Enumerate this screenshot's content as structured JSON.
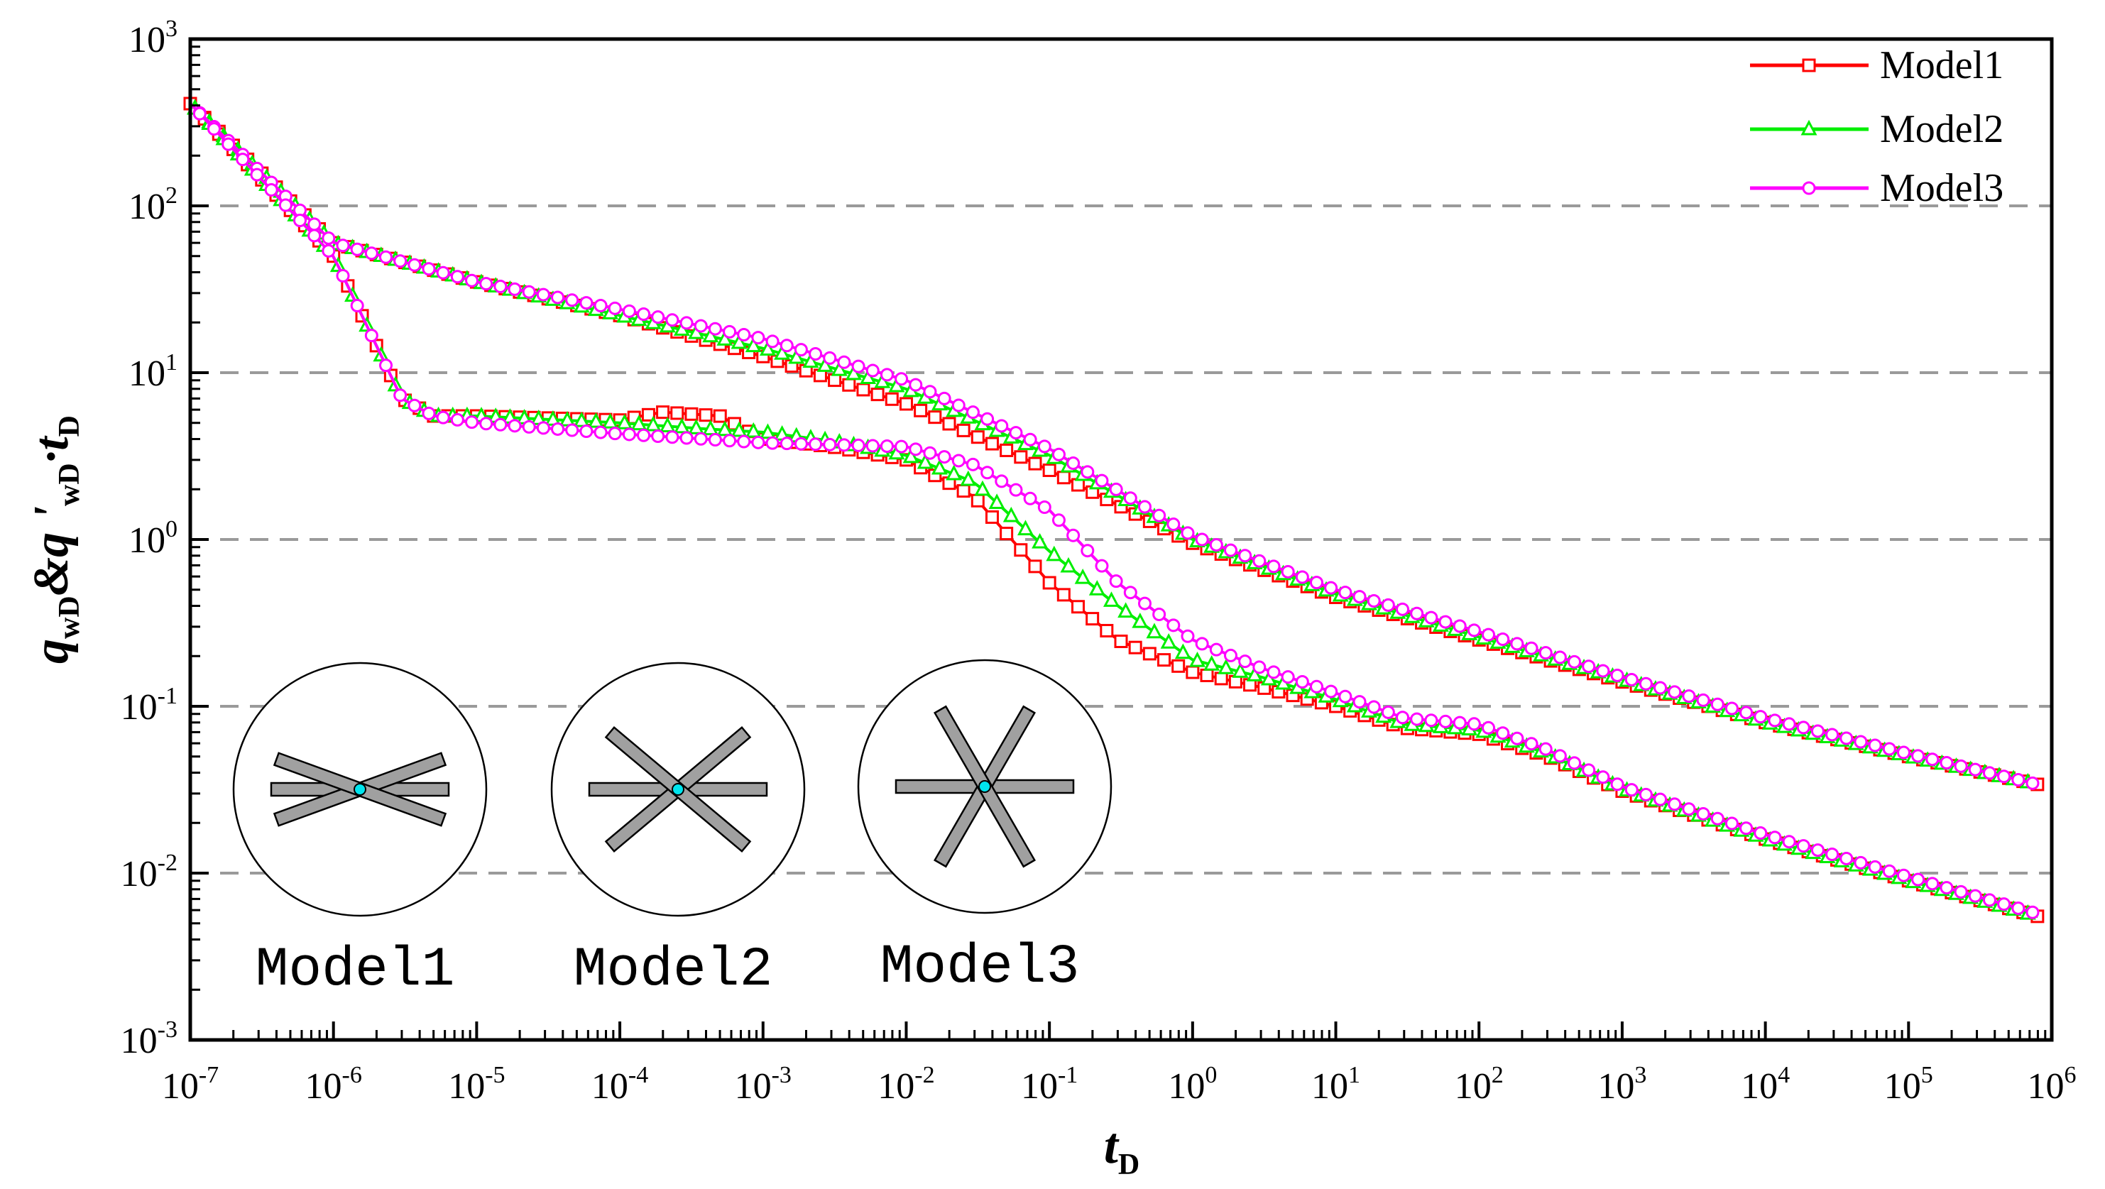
{
  "chart_data": {
    "type": "line",
    "title": "",
    "xscale": "log",
    "yscale": "log",
    "xlim": [
      1e-07,
      1000000.0
    ],
    "ylim": [
      0.001,
      1000.0
    ],
    "xlabel": {
      "main": "t",
      "sub": "D"
    },
    "ylabel": {
      "parts": [
        {
          "t": "q"
        },
        {
          "t": "wD",
          "sub": true
        },
        {
          "t": "&q"
        },
        {
          "t": " '",
          "sup": false
        },
        {
          "t": "wD",
          "sub": true
        },
        {
          "t": "·t"
        },
        {
          "t": "D",
          "sub": true
        }
      ]
    },
    "x_ticks": [
      {
        "base": "10",
        "exp": "-7"
      },
      {
        "base": "10",
        "exp": "-6"
      },
      {
        "base": "10",
        "exp": "-5"
      },
      {
        "base": "10",
        "exp": "-4"
      },
      {
        "base": "10",
        "exp": "-3"
      },
      {
        "base": "10",
        "exp": "-2"
      },
      {
        "base": "10",
        "exp": "-1"
      },
      {
        "base": "10",
        "exp": "0"
      },
      {
        "base": "10",
        "exp": "1"
      },
      {
        "base": "10",
        "exp": "2"
      },
      {
        "base": "10",
        "exp": "3"
      },
      {
        "base": "10",
        "exp": "4"
      },
      {
        "base": "10",
        "exp": "5"
      },
      {
        "base": "10",
        "exp": "6"
      }
    ],
    "y_ticks": [
      {
        "base": "10",
        "exp": "-3"
      },
      {
        "base": "10",
        "exp": "-2"
      },
      {
        "base": "10",
        "exp": "-1"
      },
      {
        "base": "10",
        "exp": "0"
      },
      {
        "base": "10",
        "exp": "1"
      },
      {
        "base": "10",
        "exp": "2"
      },
      {
        "base": "10",
        "exp": "3"
      }
    ],
    "horizontal_gridlines": [
      0.01,
      0.1,
      1,
      10,
      100
    ],
    "legend_position": "top-right",
    "series": [
      {
        "name": "Model1",
        "color": "#ff0000",
        "marker": "square",
        "curves": [
          {
            "label": "rate",
            "points": [
              [
                1e-07,
                410
              ],
              [
                1e-06,
                60
              ],
              [
                1e-05,
                35
              ],
              [
                0.0001,
                22
              ],
              [
                0.001,
                12.5
              ],
              [
                0.01,
                6.5
              ],
              [
                0.1,
                2.6
              ],
              [
                1,
                0.95
              ],
              [
                10,
                0.45
              ],
              [
                100,
                0.25
              ],
              [
                1000,
                0.14
              ],
              [
                10000,
                0.08
              ],
              [
                100000,
                0.05
              ],
              [
                800000,
                0.034
              ]
            ]
          },
          {
            "label": "derivative",
            "points": [
              [
                1e-07,
                410
              ],
              [
                1e-06,
                50
              ],
              [
                3e-06,
                7
              ],
              [
                5e-06,
                5.5
              ],
              [
                1e-05,
                5.5
              ],
              [
                0.0001,
                5.2
              ],
              [
                0.0002,
                5.8
              ],
              [
                0.0005,
                5.5
              ],
              [
                0.001,
                4
              ],
              [
                0.003,
                3.6
              ],
              [
                0.01,
                3
              ],
              [
                0.03,
                1.8
              ],
              [
                0.1,
                0.55
              ],
              [
                0.3,
                0.25
              ],
              [
                1,
                0.16
              ],
              [
                3,
                0.13
              ],
              [
                10,
                0.1
              ],
              [
                30,
                0.074
              ],
              [
                100,
                0.068
              ],
              [
                300,
                0.05
              ],
              [
                1000,
                0.031
              ],
              [
                10000,
                0.016
              ],
              [
                100000,
                0.009
              ],
              [
                800000,
                0.0055
              ]
            ]
          }
        ]
      },
      {
        "name": "Model2",
        "color": "#00ee00",
        "marker": "triangle",
        "curves": [
          {
            "label": "rate",
            "points": [
              [
                1e-07,
                410
              ],
              [
                1e-06,
                60
              ],
              [
                1e-05,
                35
              ],
              [
                0.0001,
                22
              ],
              [
                0.001,
                14
              ],
              [
                0.01,
                8
              ],
              [
                0.1,
                3.2
              ],
              [
                1,
                1.0
              ],
              [
                10,
                0.47
              ],
              [
                100,
                0.26
              ],
              [
                1000,
                0.145
              ],
              [
                10000,
                0.08
              ],
              [
                100000,
                0.05
              ],
              [
                800000,
                0.034
              ]
            ]
          },
          {
            "label": "derivative",
            "points": [
              [
                1e-07,
                410
              ],
              [
                1e-06,
                50
              ],
              [
                3e-06,
                7
              ],
              [
                5e-06,
                5.5
              ],
              [
                1e-05,
                5.5
              ],
              [
                0.0001,
                5.0
              ],
              [
                0.0004,
                4.6
              ],
              [
                0.001,
                4.4
              ],
              [
                0.003,
                3.9
              ],
              [
                0.01,
                3.2
              ],
              [
                0.03,
                2.2
              ],
              [
                0.1,
                0.85
              ],
              [
                0.3,
                0.4
              ],
              [
                1,
                0.19
              ],
              [
                3,
                0.15
              ],
              [
                10,
                0.11
              ],
              [
                30,
                0.078
              ],
              [
                100,
                0.072
              ],
              [
                300,
                0.052
              ],
              [
                1000,
                0.032
              ],
              [
                10000,
                0.016
              ],
              [
                100000,
                0.009
              ],
              [
                800000,
                0.0055
              ]
            ]
          }
        ]
      },
      {
        "name": "Model3",
        "color": "#ff00ff",
        "marker": "circle",
        "curves": [
          {
            "label": "rate",
            "points": [
              [
                1e-07,
                410
              ],
              [
                1e-06,
                60
              ],
              [
                1e-05,
                35
              ],
              [
                0.0001,
                24
              ],
              [
                0.001,
                16
              ],
              [
                0.01,
                9
              ],
              [
                0.1,
                3.5
              ],
              [
                1,
                1.05
              ],
              [
                10,
                0.5
              ],
              [
                100,
                0.28
              ],
              [
                1000,
                0.15
              ],
              [
                10000,
                0.085
              ],
              [
                100000,
                0.052
              ],
              [
                800000,
                0.034
              ]
            ]
          },
          {
            "label": "derivative",
            "points": [
              [
                1e-07,
                410
              ],
              [
                1e-06,
                50
              ],
              [
                3e-06,
                7
              ],
              [
                5e-06,
                5.5
              ],
              [
                1e-05,
                5.0
              ],
              [
                0.0001,
                4.3
              ],
              [
                0.001,
                3.8
              ],
              [
                0.01,
                3.6
              ],
              [
                0.03,
                2.8
              ],
              [
                0.1,
                1.5
              ],
              [
                0.3,
                0.55
              ],
              [
                1,
                0.25
              ],
              [
                3,
                0.17
              ],
              [
                10,
                0.12
              ],
              [
                30,
                0.085
              ],
              [
                100,
                0.078
              ],
              [
                300,
                0.055
              ],
              [
                1000,
                0.033
              ],
              [
                10000,
                0.017
              ],
              [
                100000,
                0.0095
              ],
              [
                800000,
                0.0057
              ]
            ]
          }
        ]
      }
    ],
    "insets": [
      {
        "label": "Model1",
        "fracture_angles_deg": [
          0,
          20,
          -20
        ]
      },
      {
        "label": "Model2",
        "fracture_angles_deg": [
          0,
          40,
          -40
        ]
      },
      {
        "label": "Model3",
        "fracture_angles_deg": [
          0,
          60,
          -60
        ]
      }
    ]
  }
}
